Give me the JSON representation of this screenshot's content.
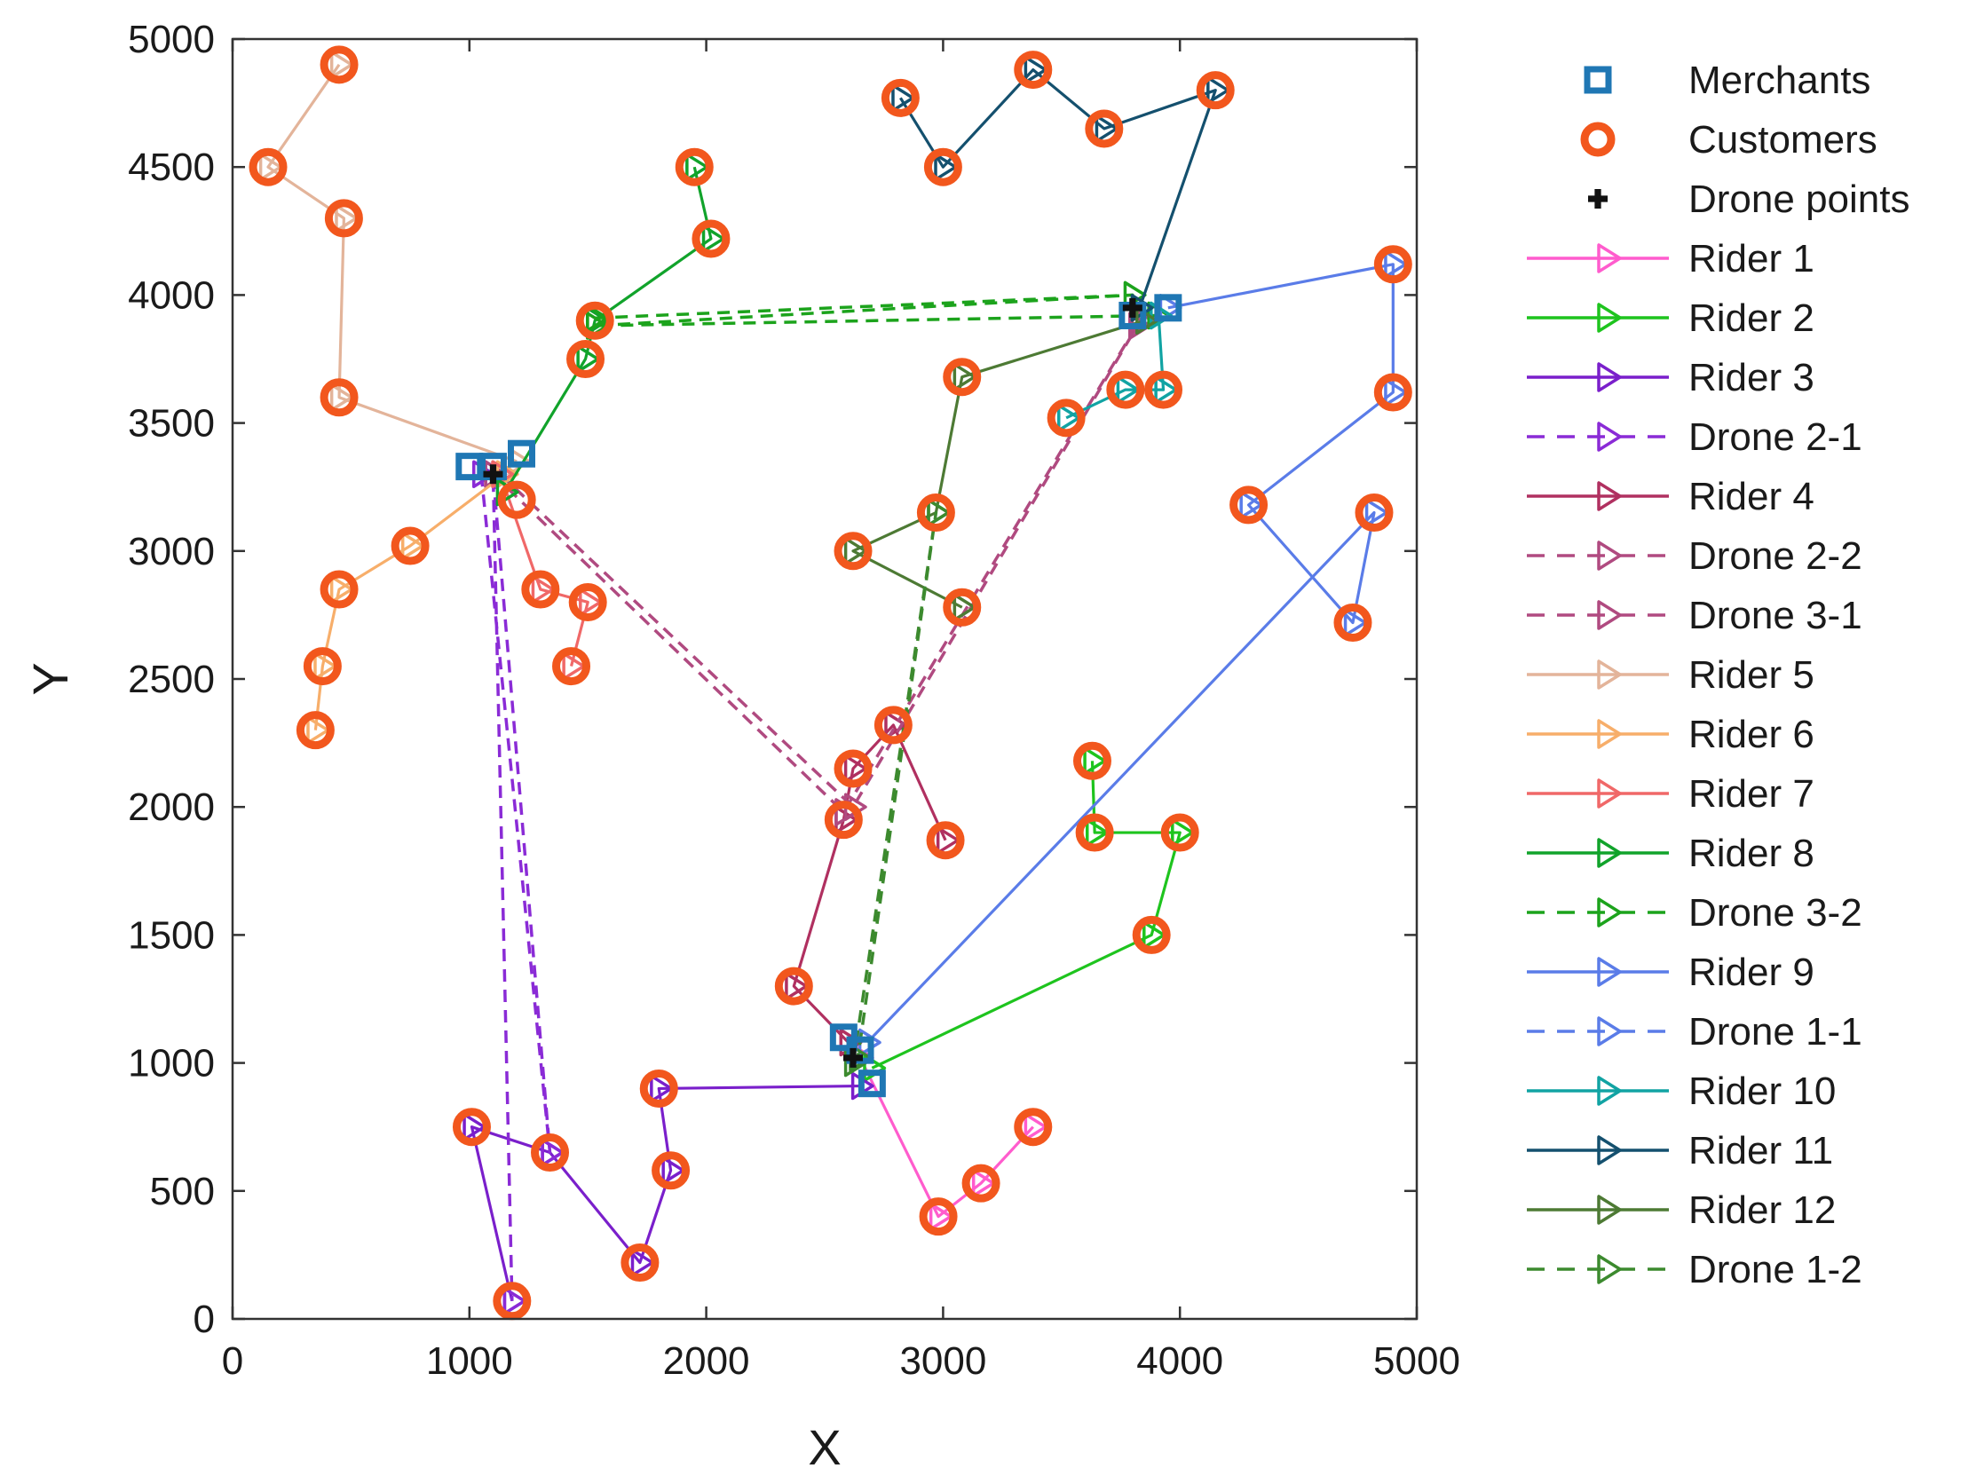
{
  "chart_data": {
    "type": "line",
    "title": "",
    "xlabel": "X",
    "ylabel": "Y",
    "xlim": [
      0,
      5000
    ],
    "ylim": [
      0,
      5000
    ],
    "xticks": [
      0,
      1000,
      2000,
      3000,
      4000,
      5000
    ],
    "yticks": [
      0,
      500,
      1000,
      1500,
      2000,
      2500,
      3000,
      3500,
      4000,
      4500,
      5000
    ],
    "grid": false,
    "legend_position": "outside-right",
    "colors": {
      "merchant": "#1f77b4",
      "customer": "#f2571d",
      "drone_point": "#111111"
    },
    "series": [
      {
        "name": "Merchants",
        "kind": "merchant",
        "points": [
          [
            1000,
            3330
          ],
          [
            1100,
            3330
          ],
          [
            1220,
            3380
          ],
          [
            2580,
            1100
          ],
          [
            2650,
            1050
          ],
          [
            2700,
            920
          ],
          [
            3800,
            3920
          ],
          [
            3950,
            3950
          ]
        ]
      },
      {
        "name": "Customers",
        "kind": "customer",
        "points": [
          [
            450,
            4900
          ],
          [
            150,
            4500
          ],
          [
            470,
            4300
          ],
          [
            450,
            3600
          ],
          [
            750,
            3020
          ],
          [
            450,
            2850
          ],
          [
            380,
            2550
          ],
          [
            350,
            2300
          ],
          [
            1300,
            2850
          ],
          [
            1500,
            2800
          ],
          [
            1430,
            2550
          ],
          [
            1950,
            4500
          ],
          [
            2020,
            4220
          ],
          [
            1530,
            3900
          ],
          [
            1490,
            3750
          ],
          [
            1200,
            3200
          ],
          [
            2820,
            4770
          ],
          [
            3380,
            4880
          ],
          [
            3680,
            4650
          ],
          [
            4150,
            4800
          ],
          [
            3000,
            4500
          ],
          [
            4900,
            4120
          ],
          [
            4900,
            3620
          ],
          [
            4290,
            3180
          ],
          [
            4820,
            3150
          ],
          [
            4730,
            2720
          ],
          [
            3080,
            3680
          ],
          [
            3520,
            3520
          ],
          [
            3770,
            3630
          ],
          [
            3930,
            3630
          ],
          [
            2620,
            3000
          ],
          [
            2970,
            3150
          ],
          [
            3080,
            2780
          ],
          [
            2790,
            2320
          ],
          [
            2620,
            2150
          ],
          [
            2580,
            1950
          ],
          [
            3010,
            1870
          ],
          [
            2370,
            1300
          ],
          [
            3630,
            2180
          ],
          [
            3640,
            1900
          ],
          [
            4000,
            1900
          ],
          [
            3880,
            1500
          ],
          [
            1800,
            900
          ],
          [
            1850,
            580
          ],
          [
            1720,
            220
          ],
          [
            1010,
            750
          ],
          [
            1340,
            650
          ],
          [
            1180,
            70
          ],
          [
            2980,
            400
          ],
          [
            3160,
            530
          ],
          [
            3380,
            750
          ]
        ]
      },
      {
        "name": "Drone points",
        "kind": "drone_point",
        "points": [
          [
            1100,
            3300
          ],
          [
            2620,
            1020
          ],
          [
            3800,
            3950
          ]
        ]
      },
      {
        "name": "Rider 1",
        "kind": "route",
        "color": "#ff5ccd",
        "dash": false,
        "points": [
          [
            2650,
            1020
          ],
          [
            2980,
            400
          ],
          [
            3160,
            530
          ],
          [
            3380,
            750
          ]
        ]
      },
      {
        "name": "Rider 2",
        "kind": "route",
        "color": "#1ec41e",
        "dash": false,
        "points": [
          [
            2700,
            980
          ],
          [
            3880,
            1500
          ],
          [
            4000,
            1900
          ],
          [
            3640,
            1900
          ],
          [
            3630,
            2180
          ]
        ]
      },
      {
        "name": "Rider 3",
        "kind": "route",
        "color": "#7a1fcb",
        "dash": false,
        "points": [
          [
            2650,
            910
          ],
          [
            1800,
            900
          ],
          [
            1850,
            580
          ],
          [
            1720,
            220
          ],
          [
            1340,
            650
          ],
          [
            1010,
            750
          ],
          [
            1180,
            70
          ]
        ]
      },
      {
        "name": "Drone 2-1",
        "kind": "route",
        "color": "#8a2bd6",
        "dash": true,
        "points": [
          [
            1050,
            3300
          ],
          [
            1340,
            650
          ],
          [
            1100,
            3300
          ],
          [
            1180,
            70
          ]
        ]
      },
      {
        "name": "Rider 4",
        "kind": "route",
        "color": "#b03060",
        "dash": false,
        "points": [
          [
            2600,
            1080
          ],
          [
            2370,
            1300
          ],
          [
            2580,
            1950
          ],
          [
            2620,
            2150
          ],
          [
            2790,
            2320
          ],
          [
            3010,
            1870
          ]
        ]
      },
      {
        "name": "Drone 2-2",
        "kind": "route",
        "color": "#b04a80",
        "dash": true,
        "points": [
          [
            1100,
            3300
          ],
          [
            2580,
            1980
          ],
          [
            3830,
            3900
          ]
        ]
      },
      {
        "name": "Drone 3-1",
        "kind": "route",
        "color": "#b04a80",
        "dash": true,
        "points": [
          [
            1130,
            3300
          ],
          [
            2620,
            2000
          ],
          [
            3820,
            3880
          ]
        ]
      },
      {
        "name": "Rider 5",
        "kind": "route",
        "color": "#e3b49a",
        "dash": false,
        "points": [
          [
            1200,
            3350
          ],
          [
            450,
            3600
          ],
          [
            470,
            4300
          ],
          [
            150,
            4500
          ],
          [
            450,
            4900
          ]
        ]
      },
      {
        "name": "Rider 6",
        "kind": "route",
        "color": "#f7ae6a",
        "dash": false,
        "points": [
          [
            1150,
            3300
          ],
          [
            750,
            3020
          ],
          [
            450,
            2850
          ],
          [
            380,
            2550
          ],
          [
            350,
            2300
          ]
        ]
      },
      {
        "name": "Rider 7",
        "kind": "route",
        "color": "#f06868",
        "dash": false,
        "points": [
          [
            1130,
            3300
          ],
          [
            1300,
            2850
          ],
          [
            1500,
            2800
          ],
          [
            1430,
            2550
          ]
        ]
      },
      {
        "name": "Rider 8",
        "kind": "route",
        "color": "#11a32b",
        "dash": false,
        "points": [
          [
            1150,
            3230
          ],
          [
            1490,
            3750
          ],
          [
            1530,
            3900
          ],
          [
            2020,
            4220
          ],
          [
            1950,
            4500
          ]
        ]
      },
      {
        "name": "Drone 3-2",
        "kind": "route",
        "color": "#1ca31c",
        "dash": true,
        "points": [
          [
            1530,
            3910
          ],
          [
            3800,
            4000
          ],
          [
            1530,
            3880
          ],
          [
            3900,
            3920
          ]
        ]
      },
      {
        "name": "Rider 9",
        "kind": "route",
        "color": "#5a7ce8",
        "dash": false,
        "points": [
          [
            2680,
            1080
          ],
          [
            4820,
            3150
          ],
          [
            4730,
            2720
          ],
          [
            4290,
            3180
          ],
          [
            4900,
            3620
          ],
          [
            4900,
            4120
          ],
          [
            3950,
            3950
          ]
        ]
      },
      {
        "name": "Drone 1-1",
        "kind": "route",
        "color": "#5a7ce8",
        "dash": true,
        "points": []
      },
      {
        "name": "Rider 10",
        "kind": "route",
        "color": "#11a3a3",
        "dash": false,
        "points": [
          [
            3910,
            3920
          ],
          [
            3930,
            3630
          ],
          [
            3770,
            3630
          ],
          [
            3520,
            3520
          ]
        ]
      },
      {
        "name": "Rider 11",
        "kind": "route",
        "color": "#14506e",
        "dash": false,
        "points": [
          [
            3830,
            3950
          ],
          [
            4150,
            4800
          ],
          [
            3680,
            4650
          ],
          [
            3380,
            4880
          ],
          [
            3000,
            4500
          ],
          [
            2820,
            4770
          ]
        ]
      },
      {
        "name": "Rider 12",
        "kind": "route",
        "color": "#4d7a34",
        "dash": false,
        "points": [
          [
            3850,
            3900
          ],
          [
            3080,
            3680
          ],
          [
            2970,
            3150
          ],
          [
            2620,
            3000
          ],
          [
            3080,
            2780
          ]
        ]
      },
      {
        "name": "Drone 1-2",
        "kind": "route",
        "color": "#3c8a2e",
        "dash": true,
        "points": [
          [
            2620,
            1000
          ],
          [
            2970,
            3150
          ],
          [
            2640,
            1020
          ]
        ]
      }
    ]
  }
}
